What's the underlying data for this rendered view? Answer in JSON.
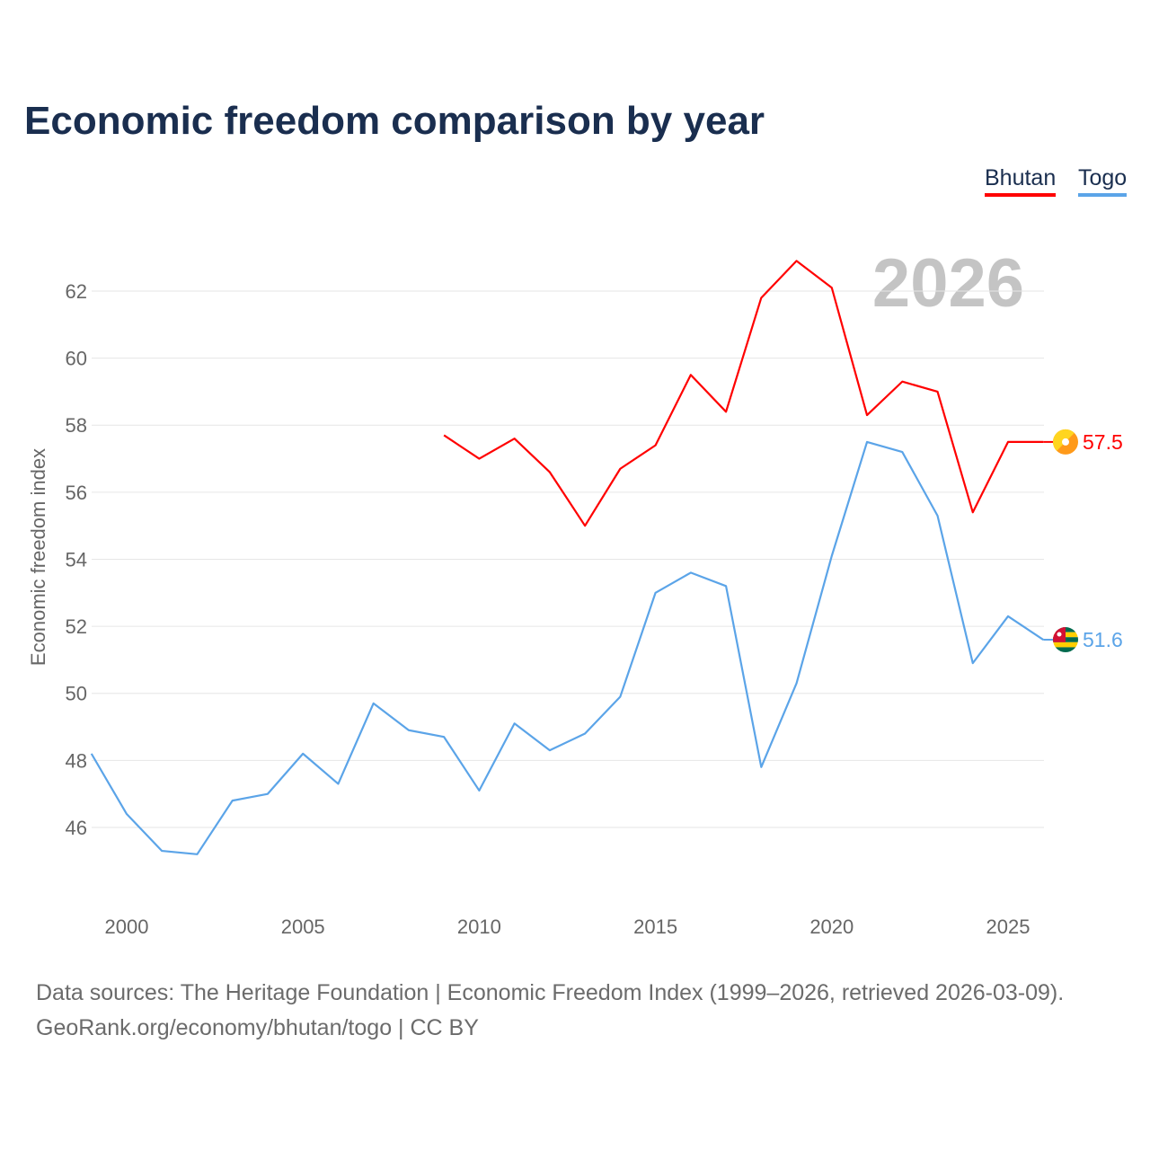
{
  "chart_data": {
    "type": "line",
    "title": "Economic freedom comparison by year",
    "xlabel": "",
    "ylabel": "Economic freedom index",
    "xlim": [
      1999,
      2026
    ],
    "ylim": [
      44,
      63.5
    ],
    "yticks": [
      46,
      48,
      50,
      52,
      54,
      56,
      58,
      60,
      62
    ],
    "xticks": [
      2000,
      2005,
      2010,
      2015,
      2020,
      2025
    ],
    "grid": true,
    "legend_placement": "top-right",
    "watermark_year": "2026",
    "series": [
      {
        "name": "Bhutan",
        "color": "#ff0000",
        "end_label": "57.5",
        "x": [
          2009,
          2010,
          2011,
          2012,
          2013,
          2014,
          2015,
          2016,
          2017,
          2018,
          2019,
          2020,
          2021,
          2022,
          2023,
          2024,
          2025,
          2026
        ],
        "values": [
          57.7,
          57.0,
          57.6,
          56.6,
          55.0,
          56.7,
          57.4,
          59.5,
          58.4,
          61.8,
          62.9,
          62.1,
          58.3,
          59.3,
          59.0,
          55.4,
          57.5,
          57.5
        ]
      },
      {
        "name": "Togo",
        "color": "#5ba4e8",
        "end_label": "51.6",
        "x": [
          1999,
          2000,
          2001,
          2002,
          2003,
          2004,
          2005,
          2006,
          2007,
          2008,
          2009,
          2010,
          2011,
          2012,
          2013,
          2014,
          2015,
          2016,
          2017,
          2018,
          2019,
          2020,
          2021,
          2022,
          2023,
          2024,
          2025,
          2026
        ],
        "values": [
          48.2,
          46.4,
          45.3,
          45.2,
          46.8,
          47.0,
          48.2,
          47.3,
          49.7,
          48.9,
          48.7,
          47.1,
          49.1,
          48.3,
          48.8,
          49.9,
          53.0,
          53.6,
          53.2,
          47.8,
          50.3,
          54.1,
          57.5,
          57.2,
          55.3,
          50.9,
          52.3,
          51.6
        ]
      }
    ]
  },
  "footer": {
    "line1": "Data sources: The Heritage Foundation | Economic Freedom Index (1999–2026, retrieved 2026-03-09).",
    "line2": "GeoRank.org/economy/bhutan/togo | CC BY"
  }
}
